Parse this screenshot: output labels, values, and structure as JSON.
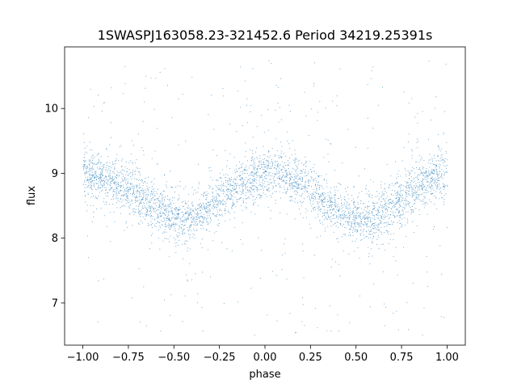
{
  "chart_data": {
    "type": "scatter",
    "title": "1SWASPJ163058.23-321452.6 Period 34219.25391s",
    "xlabel": "phase",
    "ylabel": "flux",
    "xlim": [
      -1.1,
      1.1
    ],
    "ylim": [
      6.35,
      10.95
    ],
    "xticks": [
      -1.0,
      -0.75,
      -0.5,
      -0.25,
      0.0,
      0.25,
      0.5,
      0.75,
      1.0
    ],
    "xtick_labels": [
      "−1.00",
      "−0.75",
      "−0.50",
      "−0.25",
      "0.00",
      "0.25",
      "0.50",
      "0.75",
      "1.00"
    ],
    "yticks": [
      7,
      8,
      9,
      10
    ],
    "ytick_labels": [
      "7",
      "8",
      "9",
      "10"
    ],
    "grid": false,
    "legend": "none",
    "marker_color": "#1f77b4",
    "series": [
      {
        "phase_curve": {
          "x": [
            -1.0,
            -0.9,
            -0.8,
            -0.7,
            -0.6,
            -0.5,
            -0.45,
            -0.4,
            -0.3,
            -0.2,
            -0.1,
            0.0,
            0.05,
            0.1,
            0.2,
            0.3,
            0.4,
            0.5,
            0.55,
            0.6,
            0.7,
            0.8,
            0.9,
            1.0
          ],
          "y": [
            8.98,
            8.95,
            8.85,
            8.68,
            8.48,
            8.3,
            8.27,
            8.3,
            8.5,
            8.72,
            8.9,
            9.0,
            9.02,
            8.98,
            8.85,
            8.65,
            8.45,
            8.3,
            8.27,
            8.3,
            8.5,
            8.72,
            8.9,
            8.98
          ]
        },
        "scatter_sigma": 0.18,
        "outlier_range": [
          6.5,
          10.75
        ]
      }
    ]
  }
}
